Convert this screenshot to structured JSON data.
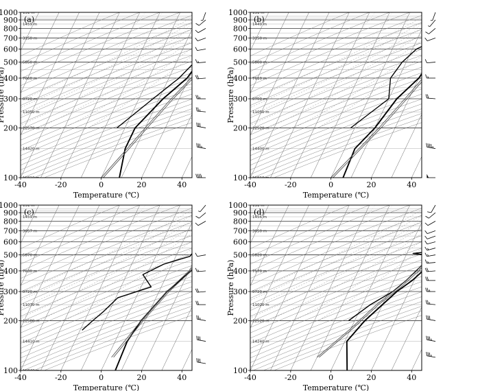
{
  "chart_data": [
    {
      "type": "line",
      "panel_label": "(a)",
      "xlabel": "Temperature (℃)",
      "ylabel": "Pressure (hPa)",
      "xlim": [
        -40,
        45
      ],
      "x_ticks": [
        -40,
        -20,
        0,
        20,
        40
      ],
      "y_scale": "log",
      "y_ticks": [
        100,
        200,
        300,
        400,
        500,
        600,
        700,
        800,
        900,
        1000
      ],
      "height_labels": [
        "16810 m",
        "14420 m",
        "12570 m",
        "11050 m",
        "9720 m",
        "7660 m",
        "5850 m",
        "3150 m",
        "1459 m",
        "131 m"
      ],
      "series": [
        {
          "role": "temperature",
          "points": [
            [
              9,
              100
            ],
            [
              5,
              150
            ],
            [
              5,
              200
            ],
            [
              12,
              300
            ],
            [
              19,
              400
            ],
            [
              21,
              500
            ],
            [
              22,
              600
            ],
            [
              24,
              700
            ],
            [
              26,
              800
            ],
            [
              28,
              900
            ],
            [
              29,
              1000
            ]
          ]
        },
        {
          "role": "dewpoint",
          "points": [
            [
              -4,
              200
            ],
            [
              7,
              300
            ],
            [
              15,
              400
            ],
            [
              19,
              500
            ],
            [
              20,
              600
            ],
            [
              22,
              700
            ],
            [
              24,
              800
            ],
            [
              26,
              900
            ],
            [
              26,
              1000
            ]
          ]
        },
        {
          "role": "parcel",
          "points": [
            [
              0,
              100
            ],
            [
              6,
              150
            ],
            [
              10,
              200
            ],
            [
              16,
              300
            ],
            [
              21,
              400
            ],
            [
              24,
              500
            ],
            [
              25,
              600
            ],
            [
              27,
              700
            ],
            [
              28,
              800
            ],
            [
              29,
              900
            ],
            [
              30,
              1000
            ]
          ]
        }
      ],
      "wind_barbs": [
        [
          100,
          270,
          40
        ],
        [
          150,
          280,
          35
        ],
        [
          200,
          280,
          30
        ],
        [
          250,
          275,
          25
        ],
        [
          300,
          270,
          25
        ],
        [
          400,
          265,
          20
        ],
        [
          500,
          265,
          15
        ],
        [
          600,
          260,
          10
        ],
        [
          700,
          250,
          10
        ],
        [
          800,
          240,
          10
        ],
        [
          900,
          230,
          10
        ],
        [
          1000,
          200,
          5
        ]
      ]
    },
    {
      "type": "line",
      "panel_label": "(b)",
      "xlabel": "Temperature (℃)",
      "ylabel": "Pressure (hPa)",
      "xlim": [
        -40,
        45
      ],
      "x_ticks": [
        -40,
        -20,
        0,
        20,
        40
      ],
      "y_scale": "log",
      "y_ticks": [
        100,
        200,
        300,
        400,
        500,
        600,
        700,
        800,
        900,
        1000
      ],
      "height_labels": [
        "16810 m",
        "14400 m",
        "12520 m",
        "11050 m",
        "9700 m",
        "7610 m",
        "5800 m",
        "3150 m",
        "1449 m",
        "131 m"
      ],
      "series": [
        {
          "role": "temperature",
          "points": [
            [
              6,
              100
            ],
            [
              5,
              150
            ],
            [
              10,
              200
            ],
            [
              14,
              300
            ],
            [
              20,
              400
            ],
            [
              22,
              500
            ],
            [
              23,
              600
            ],
            [
              24,
              700
            ],
            [
              26,
              800
            ],
            [
              27,
              900
            ],
            [
              27,
              1000
            ]
          ]
        },
        {
          "role": "dewpoint",
          "points": [
            [
              -2,
              200
            ],
            [
              10,
              300
            ],
            [
              6,
              400
            ],
            [
              8,
              500
            ],
            [
              12,
              600
            ],
            [
              21,
              700
            ],
            [
              24,
              800
            ],
            [
              26,
              900
            ],
            [
              25,
              1000
            ]
          ]
        },
        {
          "role": "parcel",
          "points": [
            [
              0,
              100
            ],
            [
              7,
              150
            ],
            [
              12,
              200
            ],
            [
              18,
              300
            ],
            [
              22,
              400
            ],
            [
              25,
              500
            ],
            [
              26,
              600
            ],
            [
              26,
              700
            ],
            [
              27,
              800
            ],
            [
              28,
              900
            ],
            [
              29,
              1000
            ]
          ]
        }
      ],
      "wind_barbs": [
        [
          100,
          270,
          50
        ],
        [
          150,
          280,
          45
        ],
        [
          300,
          275,
          20
        ],
        [
          400,
          270,
          15
        ],
        [
          500,
          265,
          10
        ],
        [
          700,
          250,
          10
        ],
        [
          800,
          230,
          10
        ],
        [
          900,
          220,
          5
        ],
        [
          1000,
          200,
          5
        ]
      ]
    },
    {
      "type": "line",
      "panel_label": "(c)",
      "xlabel": "Temperature (℃)",
      "ylabel": "Pressure (hPa)",
      "xlim": [
        -40,
        45
      ],
      "x_ticks": [
        -40,
        -20,
        0,
        20,
        40
      ],
      "y_scale": "log",
      "y_ticks": [
        100,
        200,
        300,
        400,
        500,
        600,
        700,
        800,
        900,
        1000
      ],
      "height_labels": [
        "16840 m",
        "14410 m",
        "12580 m",
        "11070 m",
        "9720 m",
        "7630 m",
        "5870 m",
        "3057 m",
        "1459 m",
        "131 m"
      ],
      "series": [
        {
          "role": "temperature",
          "points": [
            [
              7,
              100
            ],
            [
              6,
              150
            ],
            [
              8,
              200
            ],
            [
              14,
              300
            ],
            [
              21,
              400
            ],
            [
              24,
              500
            ],
            [
              25,
              600
            ],
            [
              26,
              700
            ],
            [
              27,
              800
            ],
            [
              29,
              900
            ],
            [
              31,
              1000
            ]
          ]
        },
        {
          "role": "dewpoint",
          "points": [
            [
              -19,
              175
            ],
            [
              -16,
              200
            ],
            [
              -13,
              225
            ],
            [
              -9,
              275
            ],
            [
              5,
              320
            ],
            [
              -2,
              380
            ],
            [
              6,
              440
            ],
            [
              17,
              490
            ],
            [
              18,
              540
            ],
            [
              22,
              600
            ],
            [
              21,
              650
            ],
            [
              24,
              700
            ],
            [
              23,
              750
            ],
            [
              25,
              800
            ],
            [
              27,
              900
            ],
            [
              28,
              1000
            ]
          ]
        },
        {
          "role": "parcel",
          "points": [
            [
              2,
              120
            ],
            [
              8,
              200
            ],
            [
              14,
              300
            ],
            [
              20,
              400
            ],
            [
              23,
              500
            ],
            [
              25,
              600
            ],
            [
              27,
              700
            ],
            [
              28,
              800
            ],
            [
              30,
              900
            ],
            [
              32,
              1000
            ]
          ]
        }
      ],
      "wind_barbs": [
        [
          110,
          280,
          30
        ],
        [
          150,
          280,
          30
        ],
        [
          200,
          280,
          25
        ],
        [
          250,
          270,
          20
        ],
        [
          300,
          265,
          20
        ],
        [
          400,
          265,
          15
        ],
        [
          500,
          260,
          10
        ],
        [
          800,
          240,
          10
        ],
        [
          900,
          230,
          10
        ],
        [
          1000,
          220,
          5
        ]
      ]
    },
    {
      "type": "line",
      "panel_label": "(d)",
      "xlabel": "Temperature (℃)",
      "ylabel": "Pressure (hPa)",
      "xlim": [
        -40,
        45
      ],
      "x_ticks": [
        -40,
        -20,
        0,
        20,
        40
      ],
      "y_scale": "log",
      "y_ticks": [
        100,
        200,
        300,
        400,
        500,
        600,
        700,
        800,
        900,
        1000
      ],
      "height_labels": [
        "14240 m",
        "12520 m",
        "11020 m",
        "9720 m",
        "7570 m",
        "5820 m",
        "3050 m",
        "1456 m",
        "131 m"
      ],
      "series": [
        {
          "role": "temperature",
          "points": [
            [
              8,
              100
            ],
            [
              1,
              150
            ],
            [
              5,
              200
            ],
            [
              14,
              300
            ],
            [
              19,
              350
            ],
            [
              22,
              400
            ],
            [
              24,
              450
            ],
            [
              22,
              500
            ],
            [
              24,
              550
            ],
            [
              25,
              600
            ],
            [
              26,
              700
            ],
            [
              27,
              800
            ],
            [
              26,
              900
            ],
            [
              25,
              1000
            ]
          ]
        },
        {
          "role": "dewpoint",
          "points": [
            [
              -3,
              200
            ],
            [
              4,
              250
            ],
            [
              12,
              300
            ],
            [
              16,
              350
            ],
            [
              21,
              450
            ],
            [
              20,
              500
            ],
            [
              13,
              510
            ],
            [
              19,
              520
            ],
            [
              20,
              600
            ],
            [
              21,
              700
            ],
            [
              22,
              800
            ],
            [
              22,
              900
            ],
            [
              20,
              1000
            ]
          ]
        },
        {
          "role": "parcel",
          "points": [
            [
              -10,
              120
            ],
            [
              0,
              180
            ],
            [
              7,
              250
            ],
            [
              14,
              320
            ],
            [
              19,
              400
            ],
            [
              22,
              500
            ],
            [
              24,
              600
            ],
            [
              26,
              700
            ],
            [
              27,
              800
            ],
            [
              28,
              900
            ],
            [
              29,
              1000
            ]
          ]
        }
      ],
      "wind_barbs": [
        [
          120,
          280,
          35
        ],
        [
          150,
          280,
          35
        ],
        [
          200,
          280,
          30
        ],
        [
          250,
          275,
          25
        ],
        [
          300,
          270,
          25
        ],
        [
          350,
          270,
          20
        ],
        [
          400,
          265,
          20
        ],
        [
          450,
          265,
          15
        ],
        [
          500,
          260,
          15
        ],
        [
          550,
          255,
          15
        ],
        [
          600,
          255,
          10
        ],
        [
          650,
          250,
          10
        ],
        [
          700,
          250,
          10
        ],
        [
          800,
          240,
          10
        ],
        [
          900,
          230,
          10
        ],
        [
          1000,
          210,
          10
        ]
      ]
    }
  ]
}
